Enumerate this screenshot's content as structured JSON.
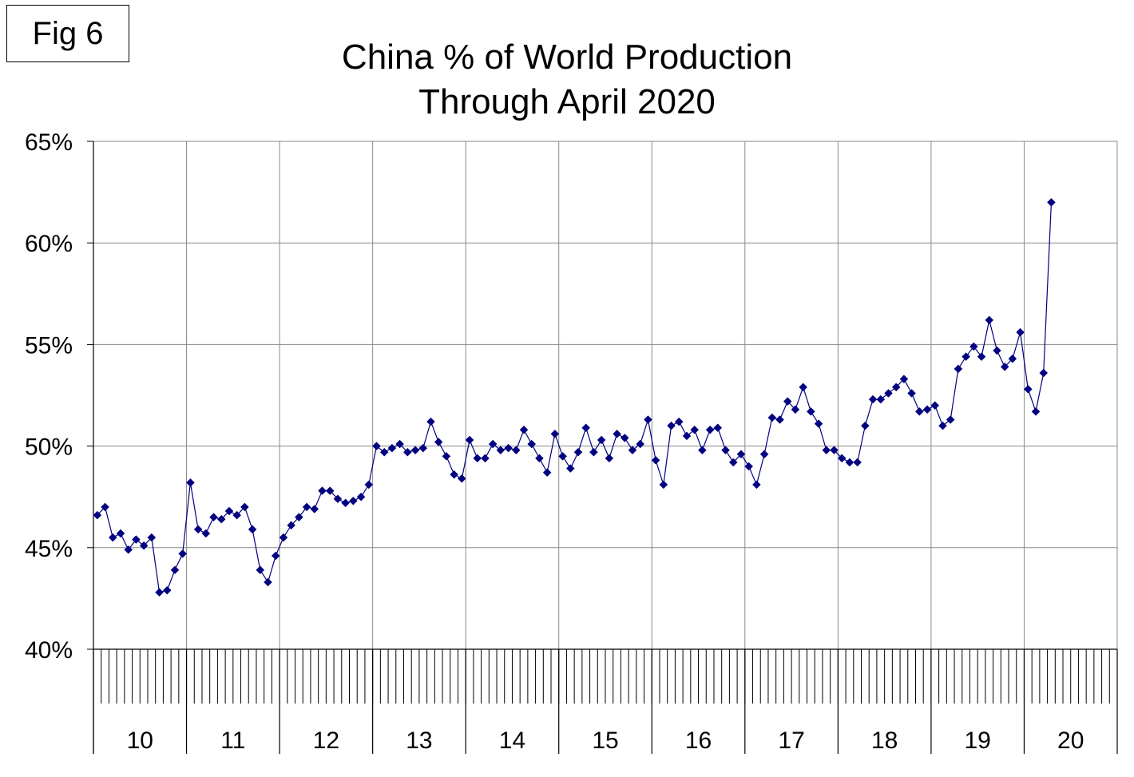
{
  "figure_label": "Fig 6",
  "chart_data": {
    "type": "line",
    "title": "China % of World Production",
    "subtitle": "Through April 2020",
    "xlabel": "",
    "ylabel": "",
    "ylim": [
      40,
      65
    ],
    "y_ticks": [
      40,
      45,
      50,
      55,
      60,
      65
    ],
    "y_tick_labels": [
      "40%",
      "45%",
      "50%",
      "55%",
      "60%",
      "65%"
    ],
    "year_labels": [
      "10",
      "11",
      "12",
      "13",
      "14",
      "15",
      "16",
      "17",
      "18",
      "19",
      "20"
    ],
    "months_per_year": 12,
    "grid": true,
    "legend": "none",
    "series": [
      {
        "color": "#000080",
        "marker": "diamond",
        "values": [
          46.6,
          47.0,
          45.5,
          45.7,
          44.9,
          45.4,
          45.1,
          45.5,
          42.8,
          42.9,
          43.9,
          44.7,
          48.2,
          45.9,
          45.7,
          46.5,
          46.4,
          46.8,
          46.6,
          47.0,
          45.9,
          43.9,
          43.3,
          44.6,
          45.5,
          46.1,
          46.5,
          47.0,
          46.9,
          47.8,
          47.8,
          47.4,
          47.2,
          47.3,
          47.5,
          48.1,
          50.0,
          49.7,
          49.9,
          50.1,
          49.7,
          49.8,
          49.9,
          51.2,
          50.2,
          49.5,
          48.6,
          48.4,
          50.3,
          49.4,
          49.4,
          50.1,
          49.8,
          49.9,
          49.8,
          50.8,
          50.1,
          49.4,
          48.7,
          50.6,
          49.5,
          48.9,
          49.7,
          50.9,
          49.7,
          50.3,
          49.4,
          50.6,
          50.4,
          49.8,
          50.1,
          51.3,
          49.3,
          48.1,
          51.0,
          51.2,
          50.5,
          50.8,
          49.8,
          50.8,
          50.9,
          49.8,
          49.2,
          49.6,
          49.0,
          48.1,
          49.6,
          51.4,
          51.3,
          52.2,
          51.8,
          52.9,
          51.7,
          51.1,
          49.8,
          49.8,
          49.4,
          49.2,
          49.2,
          51.0,
          52.3,
          52.3,
          52.6,
          52.9,
          53.3,
          52.6,
          51.7,
          51.8,
          52.0,
          51.0,
          51.3,
          53.8,
          54.4,
          54.9,
          54.4,
          56.2,
          54.7,
          53.9,
          54.3,
          55.6,
          52.8,
          51.7,
          53.6,
          62.0
        ]
      }
    ]
  }
}
